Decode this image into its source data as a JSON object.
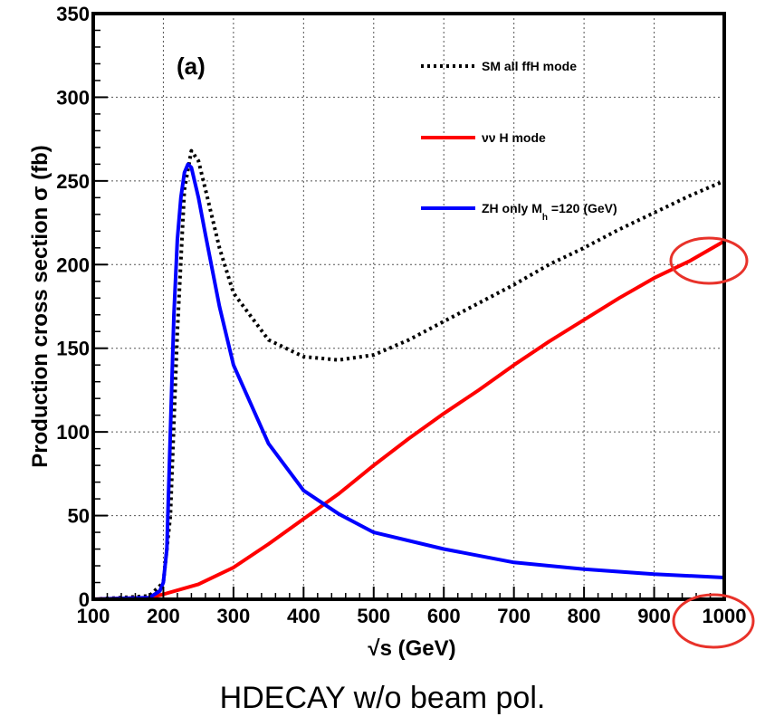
{
  "chart_data": {
    "type": "line",
    "xlabel": "√s (GeV)",
    "ylabel": "Production cross section σ (fb)",
    "xlim": [
      100,
      1000
    ],
    "ylim": [
      0,
      350
    ],
    "xticks": [
      "100",
      "200",
      "300",
      "400",
      "500",
      "600",
      "700",
      "800",
      "900",
      "1000"
    ],
    "yticks": [
      "0",
      "50",
      "100",
      "150",
      "200",
      "250",
      "300",
      "350"
    ],
    "grid": true,
    "legend_position": "top-right",
    "panel_label": "(a)",
    "series": [
      {
        "name": "SM all ffH mode",
        "style": "dotted",
        "color": "#000000",
        "x": [
          100,
          180,
          200,
          210,
          220,
          230,
          240,
          250,
          260,
          280,
          300,
          350,
          400,
          450,
          500,
          550,
          600,
          650,
          700,
          750,
          800,
          850,
          900,
          950,
          1000
        ],
        "y": [
          0,
          2,
          10,
          50,
          160,
          245,
          268,
          262,
          245,
          210,
          183,
          155,
          145,
          143,
          146,
          155,
          166,
          177,
          188,
          200,
          210,
          221,
          231,
          241,
          250
        ]
      },
      {
        "name": "νν H mode",
        "style": "solid",
        "color": "#ff0000",
        "x": [
          100,
          180,
          200,
          250,
          300,
          350,
          400,
          450,
          500,
          550,
          600,
          650,
          700,
          750,
          800,
          850,
          900,
          950,
          1000
        ],
        "y": [
          0,
          1,
          3,
          9,
          19,
          33,
          48,
          63,
          80,
          96,
          111,
          125,
          140,
          154,
          167,
          180,
          192,
          202,
          214
        ]
      },
      {
        "name": "ZH only M_h =120 (GeV)",
        "legend_main": "ZH only M",
        "legend_sub": "h",
        "legend_tail": "=120 (GeV)",
        "style": "solid",
        "color": "#0000ff",
        "x": [
          100,
          180,
          195,
          200,
          205,
          210,
          215,
          220,
          225,
          230,
          235,
          240,
          250,
          260,
          280,
          300,
          350,
          400,
          450,
          500,
          600,
          700,
          800,
          900,
          1000
        ],
        "y": [
          0,
          1,
          5,
          10,
          30,
          100,
          170,
          215,
          240,
          255,
          260,
          258,
          240,
          218,
          175,
          140,
          93,
          65,
          51,
          40,
          30,
          22,
          18,
          15,
          13
        ]
      }
    ]
  },
  "colors": {
    "annotation_circle": "#e8322a"
  },
  "caption": "HDECAY w/o beam pol."
}
